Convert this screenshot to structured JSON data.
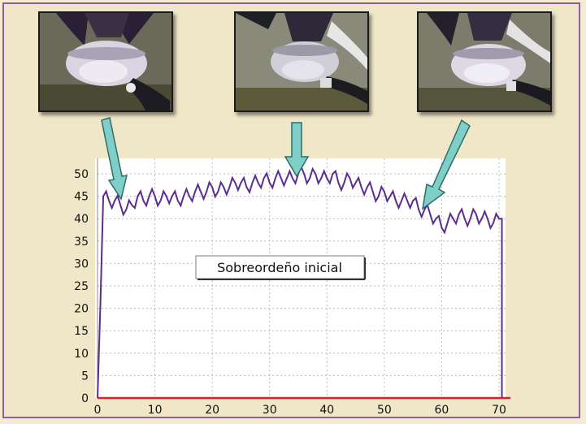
{
  "chart_data": {
    "type": "line",
    "annotation": "Sobreordeño inicial",
    "x_ticks": [
      0,
      10,
      20,
      30,
      40,
      50,
      60,
      70
    ],
    "y_ticks": [
      0,
      5,
      10,
      15,
      20,
      25,
      30,
      35,
      40,
      45,
      50
    ],
    "xlim": [
      0,
      72
    ],
    "ylim": [
      0,
      52
    ],
    "grid": true,
    "series": [
      {
        "color": "#5b2d8e",
        "x": [
          0,
          1,
          2,
          3,
          4,
          5,
          6,
          7,
          8,
          9,
          10,
          11,
          12,
          13,
          14,
          15,
          16,
          17,
          18,
          19,
          20,
          21,
          22,
          23,
          24,
          25,
          26,
          27,
          28,
          29,
          30,
          31,
          32,
          33,
          34,
          35,
          36,
          37,
          38,
          39,
          40,
          41,
          42,
          43,
          44,
          45,
          46,
          47,
          48,
          49,
          50,
          51,
          52,
          53,
          54,
          55,
          56,
          57,
          58,
          59,
          60,
          61,
          62,
          63,
          64,
          65,
          66,
          67,
          68,
          69,
          70,
          70.5,
          70.5
        ],
        "y": [
          0,
          45,
          44,
          44,
          43,
          42,
          43,
          45,
          44,
          45,
          45,
          44,
          45,
          45,
          44,
          45,
          45,
          46,
          46,
          46,
          47,
          46,
          47,
          47,
          48,
          48,
          47,
          48,
          48,
          49,
          48,
          49,
          49,
          49,
          49,
          50,
          50,
          49,
          50,
          49,
          49,
          50,
          48,
          48,
          49,
          48,
          47,
          47,
          46,
          45,
          46,
          45,
          44,
          44,
          44,
          44,
          42,
          42,
          41,
          40,
          38,
          39,
          40,
          41,
          40,
          40,
          41,
          40,
          40,
          39,
          40,
          40,
          0
        ]
      },
      {
        "color": "#d8222a",
        "x": [
          0,
          72
        ],
        "y": [
          0,
          0
        ]
      }
    ]
  },
  "photos": [
    {
      "label": ""
    },
    {
      "label": ""
    },
    {
      "label": ""
    }
  ],
  "colors": {
    "arrow_fill": "#7fcfc8",
    "arrow_stroke": "#2c6e69",
    "frame_border": "#8a5fa8",
    "background": "#f0e7c8"
  }
}
